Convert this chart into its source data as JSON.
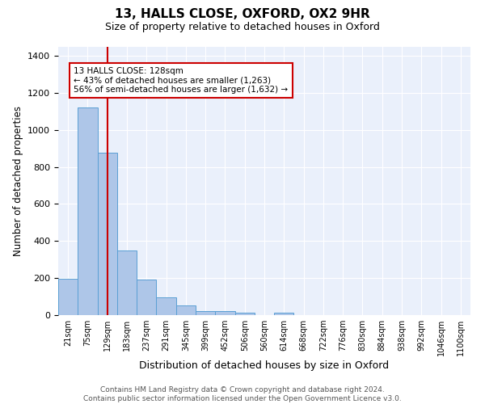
{
  "title": "13, HALLS CLOSE, OXFORD, OX2 9HR",
  "subtitle": "Size of property relative to detached houses in Oxford",
  "xlabel": "Distribution of detached houses by size in Oxford",
  "ylabel": "Number of detached properties",
  "bin_labels": [
    "21sqm",
    "75sqm",
    "129sqm",
    "183sqm",
    "237sqm",
    "291sqm",
    "345sqm",
    "399sqm",
    "452sqm",
    "506sqm",
    "560sqm",
    "614sqm",
    "668sqm",
    "722sqm",
    "776sqm",
    "830sqm",
    "884sqm",
    "938sqm",
    "992sqm",
    "1046sqm",
    "1100sqm"
  ],
  "bar_heights": [
    197,
    1121,
    876,
    349,
    193,
    97,
    51,
    23,
    22,
    15,
    0,
    13,
    0,
    0,
    0,
    0,
    0,
    0,
    0,
    0,
    0
  ],
  "bar_color": "#aec6e8",
  "bar_edge_color": "#5a9fd4",
  "vline_x": 2,
  "vline_color": "#cc0000",
  "annotation_line1": "13 HALLS CLOSE: 128sqm",
  "annotation_line2": "← 43% of detached houses are smaller (1,263)",
  "annotation_line3": "56% of semi-detached houses are larger (1,632) →",
  "annotation_box_color": "#ffffff",
  "annotation_box_edge": "#cc0000",
  "bg_color": "#eaf0fb",
  "footer": "Contains HM Land Registry data © Crown copyright and database right 2024.\nContains public sector information licensed under the Open Government Licence v3.0.",
  "ylim": [
    0,
    1450
  ],
  "yticks": [
    0,
    200,
    400,
    600,
    800,
    1000,
    1200,
    1400
  ]
}
